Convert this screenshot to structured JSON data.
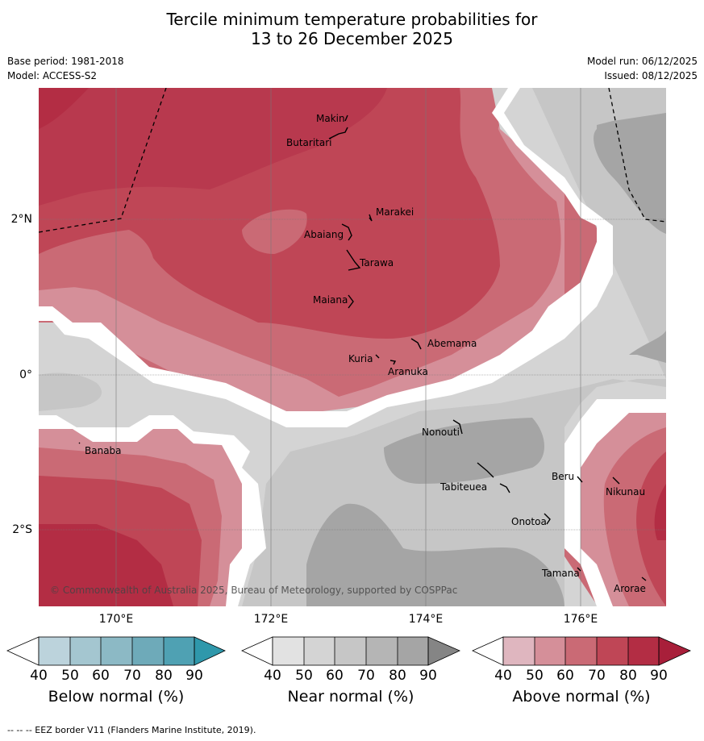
{
  "title": {
    "line1": "Tercile minimum temperature probabilities for",
    "line2": "13 to 26 December 2025"
  },
  "meta": {
    "base_period": "Base period: 1981-2018",
    "model": "Model: ACCESS-S2",
    "model_run": "Model run: 06/12/2025",
    "issued": "Issued: 08/12/2025"
  },
  "map": {
    "lon_labels": [
      "170°E",
      "172°E",
      "174°E",
      "176°E"
    ],
    "lat_labels": [
      "2°N",
      "0°",
      "2°S"
    ],
    "places": [
      {
        "name": "Makin"
      },
      {
        "name": "Butaritari"
      },
      {
        "name": "Marakei"
      },
      {
        "name": "Abaiang"
      },
      {
        "name": "Tarawa"
      },
      {
        "name": "Maiana"
      },
      {
        "name": "Abemama"
      },
      {
        "name": "Kuria"
      },
      {
        "name": "Aranuka"
      },
      {
        "name": "Banaba"
      },
      {
        "name": "Nonouti"
      },
      {
        "name": "Tabiteuea"
      },
      {
        "name": "Beru"
      },
      {
        "name": "Nikunau"
      },
      {
        "name": "Onotoa"
      },
      {
        "name": "Tamana"
      },
      {
        "name": "Arorae"
      }
    ],
    "copyright": "© Commonwealth of Australia 2025, Bureau of Meteorology, supported by COSPPac"
  },
  "colorbars": [
    {
      "label": "Below normal (%)",
      "ticks": [
        "40",
        "50",
        "60",
        "70",
        "80",
        "90"
      ],
      "colors": [
        "#ffffff",
        "#bcd3dc",
        "#a4c6d0",
        "#8cb9c5",
        "#6eaab9",
        "#4fa1b3",
        "#2f98ab"
      ]
    },
    {
      "label": "Near normal (%)",
      "ticks": [
        "40",
        "50",
        "60",
        "70",
        "80",
        "90"
      ],
      "colors": [
        "#ffffff",
        "#e2e2e2",
        "#d4d4d4",
        "#c6c6c6",
        "#b5b5b5",
        "#a5a5a5",
        "#858585"
      ]
    },
    {
      "label": "Above normal (%)",
      "ticks": [
        "40",
        "50",
        "60",
        "70",
        "80",
        "90"
      ],
      "colors": [
        "#ffffff",
        "#dfb6bf",
        "#d58f99",
        "#ca6a75",
        "#bf4656",
        "#b32d44",
        "#a81f3a"
      ]
    }
  ],
  "footer": "--  --  -- EEZ border V11 (Flanders Marine Institute, 2019)."
}
